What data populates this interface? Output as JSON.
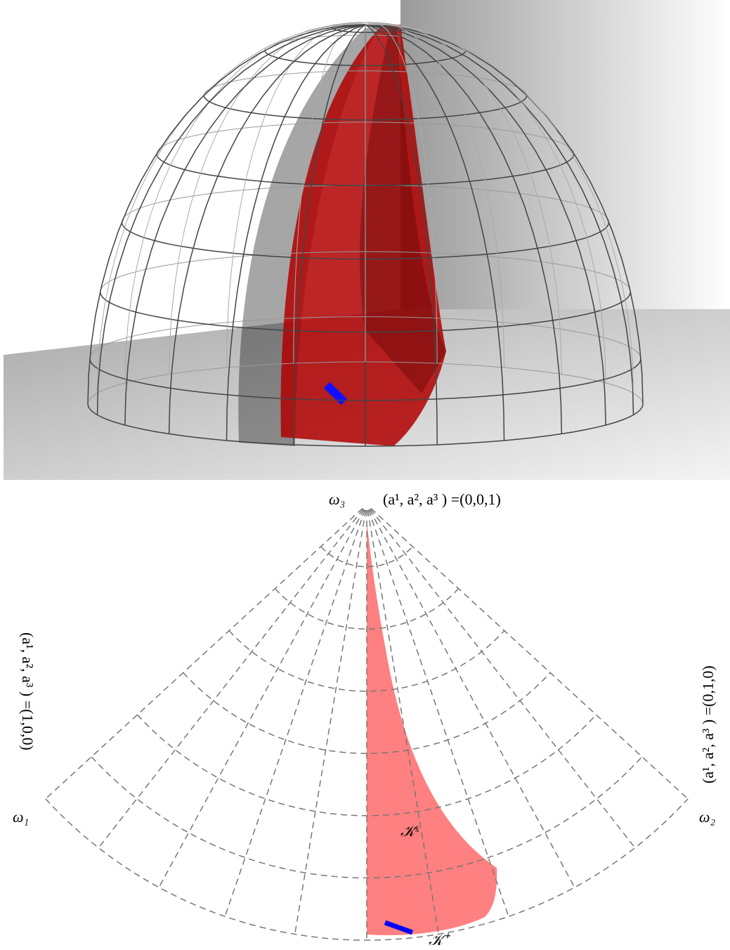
{
  "labels": {
    "omega3": "ω₃",
    "top_point": "(a¹, a², a³ ) =(0,0,1)",
    "omega1": "ω₁",
    "left_point": "(a¹, a², a³ ) =(1,0,0)",
    "omega2": "ω₂",
    "right_point": "(a¹, a², a³ ) =(0,1,0)",
    "k_s": "𝒦ˢ",
    "k_plus": "𝒦⁺"
  }
}
